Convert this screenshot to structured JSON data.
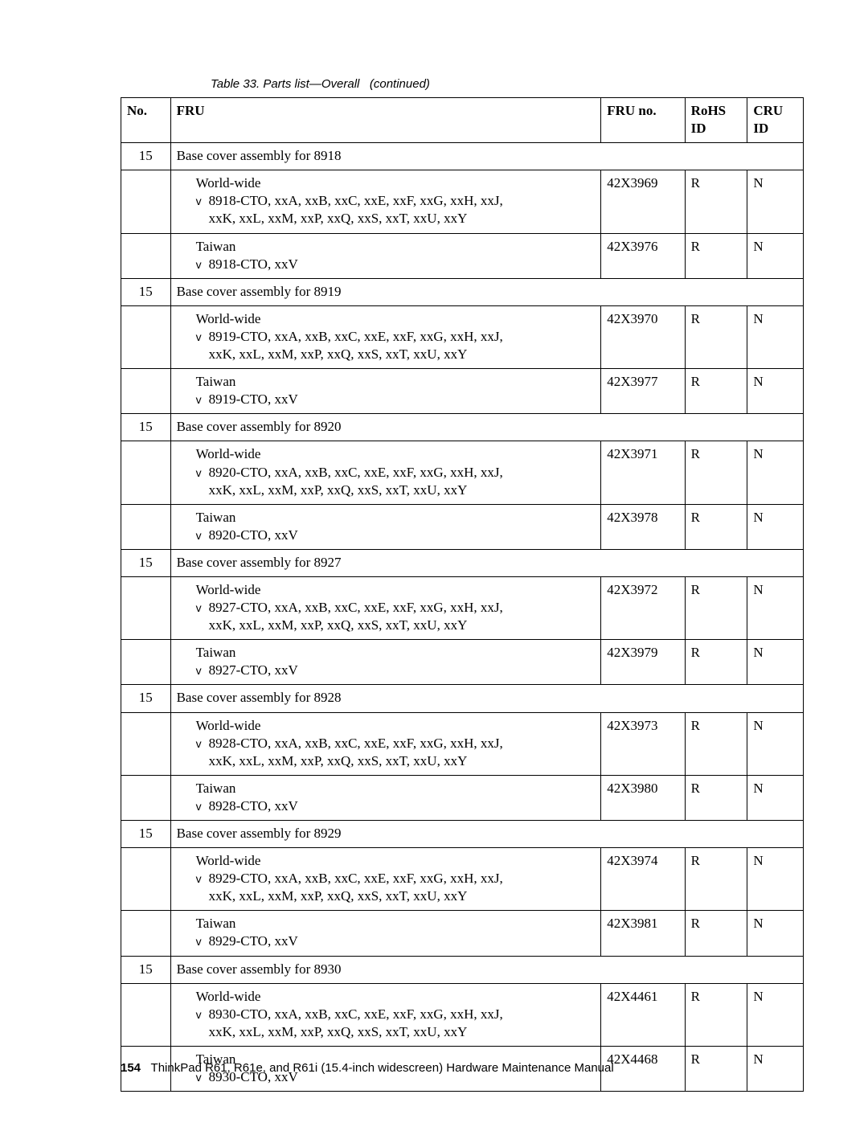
{
  "caption": {
    "prefix": "Table 33. Parts list",
    "mid": "—",
    "suffix": "Overall",
    "cont": "(continued)"
  },
  "headers": {
    "no": "No.",
    "fru": "FRU",
    "frun": "FRU no.",
    "rohs": "RoHS ID",
    "cru": "CRU ID"
  },
  "worldwide_label": "World-wide",
  "taiwan_label": "Taiwan",
  "ww_line2_common": "xxK, xxL, xxM, xxP, xxQ, xxS, xxT, xxU, xxY",
  "groups": [
    {
      "no": "15",
      "section": "Base cover assembly for 8918",
      "ww_line1": "8918-CTO, xxA, xxB, xxC, xxE, xxF, xxG, xxH, xxJ,",
      "ww_frun": "42X3969",
      "ww_rohs": "R",
      "ww_cru": "N",
      "tw_line1": "8918-CTO, xxV",
      "tw_frun": "42X3976",
      "tw_rohs": "R",
      "tw_cru": "N"
    },
    {
      "no": "15",
      "section": "Base cover assembly for 8919",
      "ww_line1": "8919-CTO, xxA, xxB, xxC, xxE, xxF, xxG, xxH, xxJ,",
      "ww_frun": "42X3970",
      "ww_rohs": "R",
      "ww_cru": "N",
      "tw_line1": "8919-CTO, xxV",
      "tw_frun": "42X3977",
      "tw_rohs": "R",
      "tw_cru": "N"
    },
    {
      "no": "15",
      "section": "Base cover assembly for 8920",
      "ww_line1": "8920-CTO, xxA, xxB, xxC, xxE, xxF, xxG, xxH, xxJ,",
      "ww_frun": "42X3971",
      "ww_rohs": "R",
      "ww_cru": "N",
      "tw_line1": "8920-CTO, xxV",
      "tw_frun": "42X3978",
      "tw_rohs": "R",
      "tw_cru": "N"
    },
    {
      "no": "15",
      "section": "Base cover assembly for 8927",
      "ww_line1": "8927-CTO, xxA, xxB, xxC, xxE, xxF, xxG, xxH, xxJ,",
      "ww_frun": "42X3972",
      "ww_rohs": "R",
      "ww_cru": "N",
      "tw_line1": "8927-CTO, xxV",
      "tw_frun": "42X3979",
      "tw_rohs": "R",
      "tw_cru": "N"
    },
    {
      "no": "15",
      "section": "Base cover assembly for 8928",
      "ww_line1": "8928-CTO, xxA, xxB, xxC, xxE, xxF, xxG, xxH, xxJ,",
      "ww_frun": "42X3973",
      "ww_rohs": "R",
      "ww_cru": "N",
      "tw_line1": "8928-CTO, xxV",
      "tw_frun": "42X3980",
      "tw_rohs": "R",
      "tw_cru": "N"
    },
    {
      "no": "15",
      "section": "Base cover assembly for 8929",
      "ww_line1": "8929-CTO, xxA, xxB, xxC, xxE, xxF, xxG, xxH, xxJ,",
      "ww_frun": "42X3974",
      "ww_rohs": "R",
      "ww_cru": "N",
      "tw_line1": "8929-CTO, xxV",
      "tw_frun": "42X3981",
      "tw_rohs": "R",
      "tw_cru": "N"
    },
    {
      "no": "15",
      "section": "Base cover assembly for 8930",
      "ww_line1": "8930-CTO, xxA, xxB, xxC, xxE, xxF, xxG, xxH, xxJ,",
      "ww_frun": "42X4461",
      "ww_rohs": "R",
      "ww_cru": "N",
      "tw_line1": "8930-CTO, xxV",
      "tw_frun": "42X4468",
      "tw_rohs": "R",
      "tw_cru": "N"
    }
  ],
  "footer": {
    "page": "154",
    "text": "ThinkPad R61, R61e, and R61i (15.4-inch widescreen) Hardware Maintenance Manual"
  }
}
